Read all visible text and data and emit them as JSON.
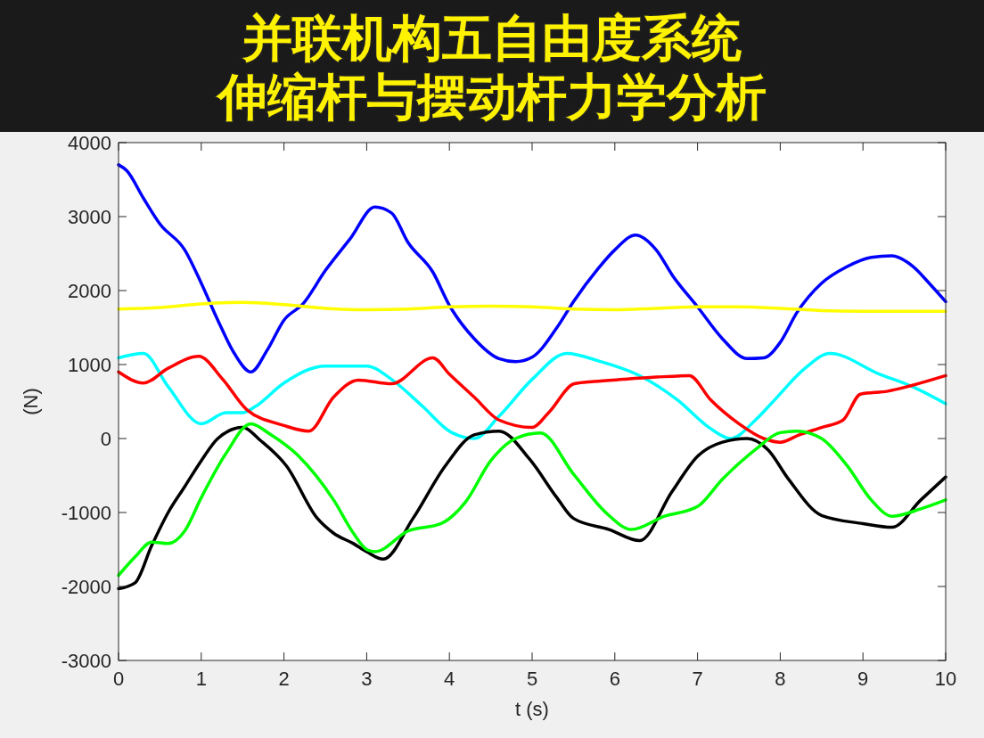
{
  "chart_data": {
    "type": "line",
    "title": "并联机构五自由度系统",
    "subtitle": "伸缩杆与摆动杆力学分析",
    "xlabel": "t (s)",
    "ylabel": "(N)",
    "xlim": [
      0,
      10
    ],
    "ylim": [
      -3000,
      4000
    ],
    "xticks": [
      0,
      1,
      2,
      3,
      4,
      5,
      6,
      7,
      8,
      9,
      10
    ],
    "yticks": [
      -3000,
      -2000,
      -1000,
      0,
      1000,
      2000,
      3000,
      4000
    ],
    "grid": false,
    "marker": "none",
    "line_style": "solid",
    "series": [
      {
        "color": "#0000ff",
        "x": [
          0,
          0.1,
          0.3,
          0.5,
          0.8,
          1.0,
          1.2,
          1.4,
          1.6,
          1.8,
          2.0,
          2.23,
          2.5,
          2.8,
          3.1,
          3.3,
          3.5,
          3.8,
          4.0,
          4.3,
          4.6,
          4.8,
          5.0,
          5.3,
          5.5,
          5.8,
          6.0,
          6.25,
          6.5,
          6.7,
          7.0,
          7.3,
          7.6,
          7.8,
          8.0,
          8.2,
          8.5,
          8.8,
          9.1,
          9.35,
          9.6,
          9.8,
          10
        ],
        "values": [
          3700,
          3620,
          3250,
          2900,
          2550,
          2100,
          1600,
          1150,
          900,
          1200,
          1600,
          1820,
          2270,
          2700,
          3130,
          3050,
          2650,
          2250,
          1800,
          1350,
          1080,
          1040,
          1100,
          1500,
          1850,
          2300,
          2550,
          2750,
          2550,
          2200,
          1780,
          1350,
          1080,
          1090,
          1300,
          1700,
          2100,
          2320,
          2450,
          2470,
          2330,
          2100,
          1850
        ]
      },
      {
        "color": "#ffff00",
        "x": [
          0,
          0.5,
          1.0,
          1.5,
          2.0,
          2.5,
          3.0,
          3.5,
          4.0,
          4.5,
          5.0,
          5.5,
          6.0,
          6.5,
          7.0,
          7.5,
          8.0,
          8.5,
          9.0,
          9.5,
          10
        ],
        "values": [
          1750,
          1770,
          1820,
          1840,
          1810,
          1760,
          1740,
          1750,
          1780,
          1790,
          1780,
          1750,
          1740,
          1760,
          1780,
          1780,
          1760,
          1730,
          1720,
          1720,
          1720
        ]
      },
      {
        "color": "#00ffff",
        "x": [
          0,
          0.3,
          0.6,
          1.0,
          1.3,
          1.5,
          1.65,
          2.0,
          2.5,
          3.0,
          3.3,
          3.68,
          4.0,
          4.3,
          4.6,
          5.0,
          5.42,
          5.8,
          6.3,
          6.76,
          7.15,
          7.4,
          7.7,
          7.93,
          8.3,
          8.6,
          9.2,
          9.6,
          10
        ],
        "values": [
          1090,
          1150,
          700,
          200,
          350,
          350,
          430,
          750,
          980,
          980,
          800,
          430,
          100,
          0,
          300,
          800,
          1150,
          1050,
          850,
          520,
          140,
          0,
          250,
          520,
          950,
          1150,
          870,
          700,
          470
        ]
      },
      {
        "color": "#ff0000",
        "x": [
          0,
          0.3,
          0.6,
          0.97,
          1.26,
          1.55,
          1.99,
          2.3,
          2.6,
          2.9,
          3.3,
          3.8,
          4.0,
          4.3,
          4.6,
          5.0,
          5.2,
          5.51,
          5.75,
          6.1,
          6.5,
          6.9,
          7.16,
          7.5,
          7.8,
          8.0,
          8.23,
          8.5,
          8.76,
          8.97,
          9.3,
          9.6,
          10
        ],
        "values": [
          900,
          750,
          950,
          1110,
          800,
          390,
          180,
          100,
          560,
          790,
          740,
          1090,
          870,
          560,
          250,
          150,
          350,
          740,
          770,
          800,
          830,
          850,
          520,
          200,
          0,
          -50,
          50,
          150,
          250,
          600,
          640,
          720,
          850
        ]
      },
      {
        "color": "#000000",
        "x": [
          0,
          0.2,
          0.4,
          0.6,
          0.8,
          1.0,
          1.2,
          1.5,
          1.72,
          2.03,
          2.4,
          2.6,
          2.84,
          3.0,
          3.2,
          3.56,
          3.95,
          4.3,
          4.6,
          4.97,
          5.3,
          5.5,
          5.93,
          6.3,
          6.69,
          7.0,
          7.3,
          7.6,
          7.85,
          8.1,
          8.5,
          9.0,
          9.35,
          9.7,
          10
        ],
        "values": [
          -2030,
          -1950,
          -1450,
          -1000,
          -650,
          -300,
          0,
          150,
          -30,
          -370,
          -1075,
          -1280,
          -1420,
          -1530,
          -1630,
          -1080,
          -370,
          50,
          100,
          -280,
          -800,
          -1080,
          -1230,
          -1380,
          -720,
          -240,
          -50,
          0,
          -150,
          -550,
          -1040,
          -1150,
          -1200,
          -830,
          -520
        ]
      },
      {
        "color": "#00ff00",
        "x": [
          0,
          0.2,
          0.4,
          0.6,
          0.8,
          1.0,
          1.3,
          1.6,
          1.83,
          2.18,
          2.6,
          2.84,
          3.0,
          3.1,
          3.5,
          3.9,
          4.2,
          4.5,
          4.8,
          5.1,
          5.5,
          5.9,
          6.2,
          6.6,
          7.0,
          7.3,
          7.7,
          8.0,
          8.2,
          8.5,
          8.81,
          9.1,
          9.35,
          9.7,
          10
        ],
        "values": [
          -1850,
          -1600,
          -1400,
          -1420,
          -1250,
          -800,
          -200,
          200,
          60,
          -240,
          -830,
          -1280,
          -1500,
          -1530,
          -1250,
          -1150,
          -850,
          -300,
          0,
          75,
          -480,
          -1010,
          -1230,
          -1050,
          -920,
          -550,
          -150,
          80,
          100,
          0,
          -370,
          -830,
          -1050,
          -950,
          -830
        ]
      }
    ]
  }
}
